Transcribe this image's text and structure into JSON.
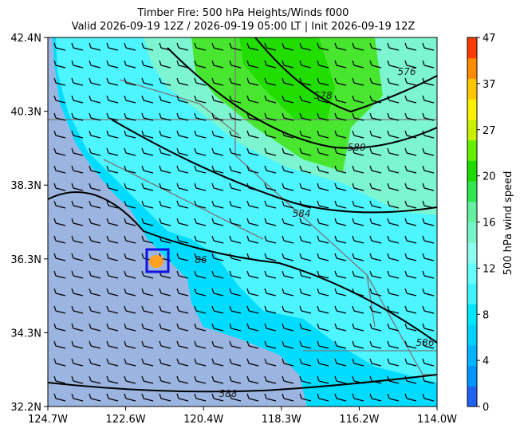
{
  "title": [
    "Timber Fire: 500 hPa Heights/Winds f000",
    "Valid 2026-09-19 12Z / 2026-09-19 05:00 LT | Init 2026-09-19 12Z"
  ],
  "lat_ticks": [
    "42.4N",
    "40.3N",
    "38.3N",
    "36.3N",
    "34.3N",
    "32.2N"
  ],
  "lon_ticks": [
    "124.7W",
    "122.6W",
    "120.4W",
    "118.3W",
    "116.2W",
    "114.0W"
  ],
  "colorbar": {
    "label": "500 hPa wind speed",
    "ticks": [
      0,
      4,
      8,
      12,
      16,
      20,
      27,
      37,
      47
    ],
    "colors": [
      "#1e64f0",
      "#0096ff",
      "#00b4ff",
      "#00d2ff",
      "#00e6ff",
      "#3cf5ff",
      "#64ffff",
      "#8cfff0",
      "#78f5c8",
      "#64f0a0",
      "#32e650",
      "#1edc00",
      "#64f000",
      "#c8f000",
      "#fff000",
      "#ffc800",
      "#ff8c00",
      "#ff3c00"
    ]
  },
  "contour_labels": [
    "576",
    "578",
    "580",
    "584",
    "86",
    "586",
    "588"
  ]
}
